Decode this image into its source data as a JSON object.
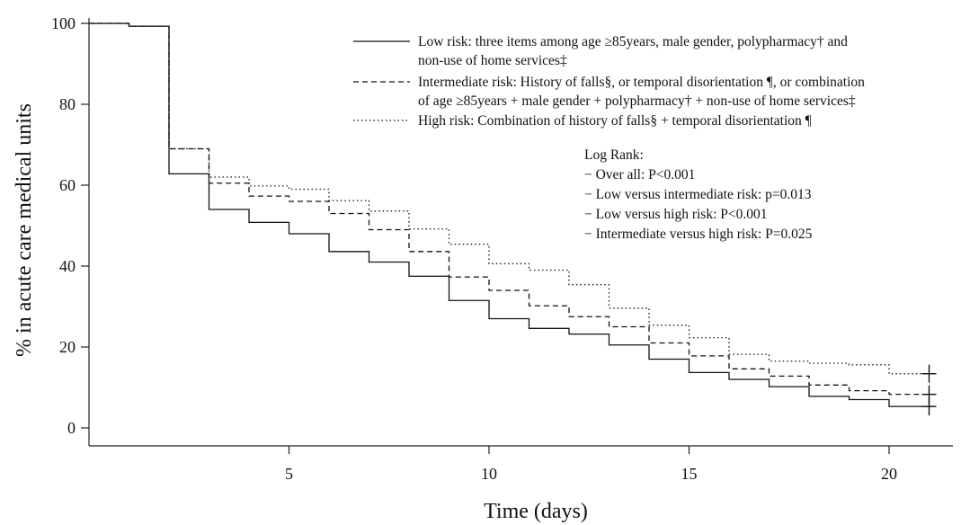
{
  "chart_data": {
    "type": "line",
    "xlabel": "Time (days)",
    "ylabel": "% in acute care medical units",
    "xlim": [
      0,
      21.5
    ],
    "ylim": [
      0,
      100
    ],
    "xticks": [
      5,
      10,
      15,
      20
    ],
    "yticks": [
      0,
      20,
      40,
      60,
      80,
      100
    ],
    "grid": false,
    "legend_position": "top-right",
    "legend": [
      {
        "lines": [
          "Low risk: three items among age ≥85years, male gender, polypharmacy† and",
          "non-use of home services‡"
        ]
      },
      {
        "lines": [
          "Intermediate risk: History of falls§, or temporal disorientation ¶, or combination",
          "of age ≥85years + male gender + polypharmacy† + non-use of home services‡"
        ]
      },
      {
        "lines": [
          "High risk: Combination of history of falls§ + temporal disorientation ¶"
        ]
      }
    ],
    "annotation": {
      "title": "Log Rank:",
      "items": [
        "− Over all: P<0.001",
        "− Low versus intermediate risk:  p=0.013",
        "− Low versus high risk: P<0.001",
        "− Intermediate versus high risk: P=0.025"
      ]
    },
    "series": [
      {
        "style": "solid",
        "steps": [
          [
            0,
            100
          ],
          [
            1,
            99.3
          ],
          [
            2,
            62.8
          ],
          [
            3,
            54
          ],
          [
            4,
            50.8
          ],
          [
            5,
            48
          ],
          [
            6,
            43.6
          ],
          [
            7,
            41
          ],
          [
            8,
            37.5
          ],
          [
            9,
            31.5
          ],
          [
            10,
            27
          ],
          [
            11,
            24.6
          ],
          [
            12,
            23.2
          ],
          [
            13,
            20.5
          ],
          [
            14,
            17
          ],
          [
            15,
            13.7
          ],
          [
            16,
            12
          ],
          [
            17,
            10.2
          ],
          [
            18,
            7.8
          ],
          [
            19,
            7
          ],
          [
            20,
            5.3
          ],
          [
            21,
            5.3
          ]
        ],
        "censor": 21
      },
      {
        "style": "dashed",
        "steps": [
          [
            0,
            100
          ],
          [
            1,
            99.3
          ],
          [
            2,
            69
          ],
          [
            3,
            60.5
          ],
          [
            4,
            57.3
          ],
          [
            5,
            56
          ],
          [
            6,
            53
          ],
          [
            7,
            49
          ],
          [
            8,
            43.6
          ],
          [
            9,
            37.3
          ],
          [
            10,
            34
          ],
          [
            11,
            30.2
          ],
          [
            12,
            27.5
          ],
          [
            13,
            25
          ],
          [
            14,
            21
          ],
          [
            15,
            17.8
          ],
          [
            16,
            14.6
          ],
          [
            17,
            12.8
          ],
          [
            18,
            10.6
          ],
          [
            19,
            9.2
          ],
          [
            20,
            8.3
          ],
          [
            21,
            8.3
          ]
        ],
        "censor": 21
      },
      {
        "style": "dotted",
        "steps": [
          [
            0,
            100
          ],
          [
            1,
            99.3
          ],
          [
            2,
            69
          ],
          [
            3,
            62
          ],
          [
            4,
            59.8
          ],
          [
            5,
            59
          ],
          [
            6,
            56.2
          ],
          [
            7,
            53.6
          ],
          [
            8,
            49.2
          ],
          [
            9,
            45.4
          ],
          [
            10,
            40.6
          ],
          [
            11,
            39
          ],
          [
            12,
            35.4
          ],
          [
            13,
            29.6
          ],
          [
            14,
            25.4
          ],
          [
            15,
            22.3
          ],
          [
            16,
            18.2
          ],
          [
            17,
            16.5
          ],
          [
            18,
            16
          ],
          [
            19,
            15.6
          ],
          [
            20,
            13.4
          ],
          [
            21,
            13.4
          ]
        ],
        "censor": 21
      }
    ]
  }
}
